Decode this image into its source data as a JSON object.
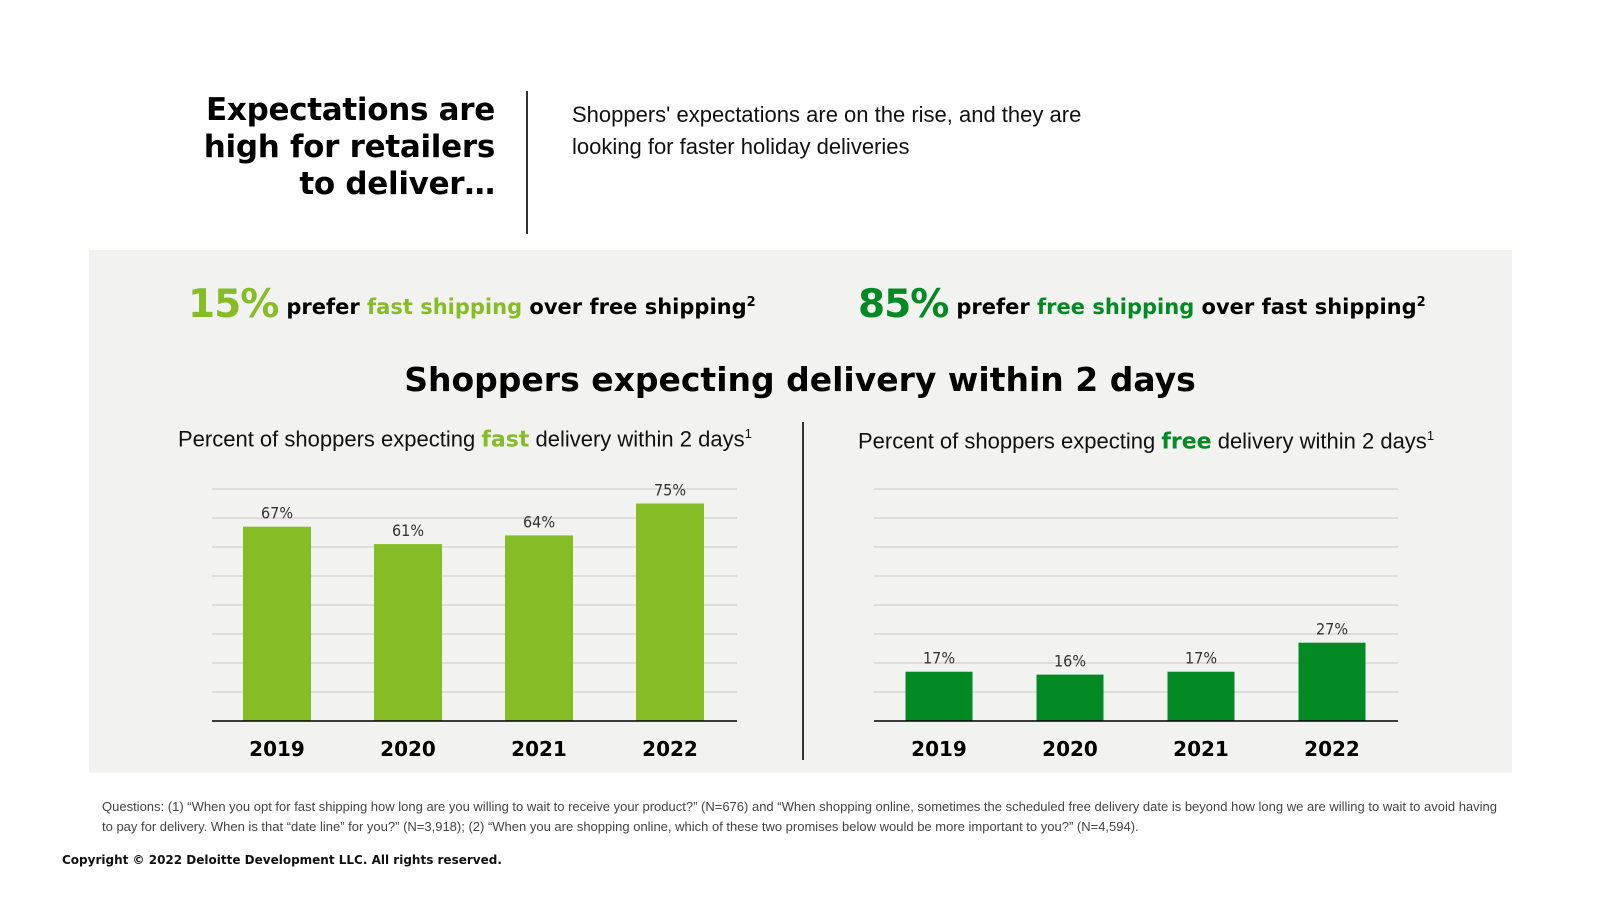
{
  "header": {
    "headline_lines": [
      "Expectations are",
      "high for retailers",
      "to deliver…"
    ],
    "subhead_lines": [
      "Shoppers' expectations are on the rise, and they are",
      "looking for faster holiday deliveries"
    ]
  },
  "stats": [
    {
      "value": "15%",
      "prefix": "prefer",
      "highlight": "fast shipping",
      "suffix": "over free shipping",
      "sup": "2"
    },
    {
      "value": "85%",
      "prefix": "prefer",
      "highlight": "free shipping",
      "suffix": "over fast shipping",
      "sup": "2"
    }
  ],
  "section_title": "Shoppers expecting delivery within 2 days",
  "colors": {
    "light_green": "#86bc25",
    "dark_green": "#048a24",
    "panel": "#f2f2f0",
    "grid": "#c8c8c8"
  },
  "chart_titles": [
    {
      "prefix": "Percent of shoppers expecting",
      "highlight": "fast",
      "suffix": "delivery within 2 days",
      "sup": "1"
    },
    {
      "prefix": "Percent of shoppers expecting",
      "highlight": "free",
      "suffix": "delivery within 2 days",
      "sup": "1"
    }
  ],
  "chart_data": [
    {
      "type": "bar",
      "categories": [
        "2019",
        "2020",
        "2021",
        "2022"
      ],
      "values": [
        67,
        61,
        64,
        75
      ],
      "value_labels": [
        "67%",
        "61%",
        "64%",
        "75%"
      ],
      "ylim": [
        0,
        80
      ],
      "grid": true,
      "color": "#86bc25"
    },
    {
      "type": "bar",
      "categories": [
        "2019",
        "2020",
        "2021",
        "2022"
      ],
      "values": [
        17,
        16,
        17,
        27
      ],
      "value_labels": [
        "17%",
        "16%",
        "17%",
        "27%"
      ],
      "ylim": [
        0,
        80
      ],
      "grid": true,
      "color": "#048a24"
    }
  ],
  "footnote": "Questions: (1) “When you opt for fast shipping how long are you willing to wait to receive your product?” (N=676) and “When shopping online, sometimes the scheduled free delivery date is beyond how long we are willing to wait to avoid having to pay for delivery. When is that “date line” for you?” (N=3,918); (2) “When you are shopping online, which of these two promises below would be more important to you?” (N=4,594).",
  "copyright": "Copyright © 2022 Deloitte Development LLC. All rights reserved."
}
